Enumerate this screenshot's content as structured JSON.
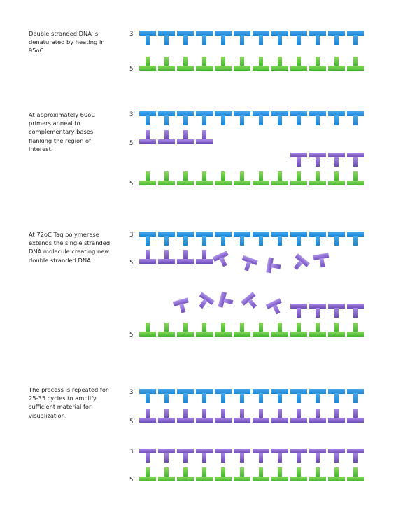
{
  "steps": [
    {
      "text": "Double stranded DNA is denaturated by heating in 95oC"
    },
    {
      "text": "At approximately 60oC primers anneal to complementary bases flanking the region of interest."
    },
    {
      "text": "At 72oC Taq polymerase extends the single stranded DNA molecule creating new double stranded DNA."
    },
    {
      "text": "The process is repeated for 25-35 cycles to amplify sufficient material for visualization."
    }
  ],
  "labels": {
    "three_prime": "3’",
    "five_prime": "5’"
  },
  "colors": {
    "blue": "#1a86d6",
    "blue_light": "#4aa8ea",
    "green": "#3fb52d",
    "green_light": "#8cd95c",
    "purple": "#6c4bb7",
    "purple_light": "#a889e6"
  }
}
